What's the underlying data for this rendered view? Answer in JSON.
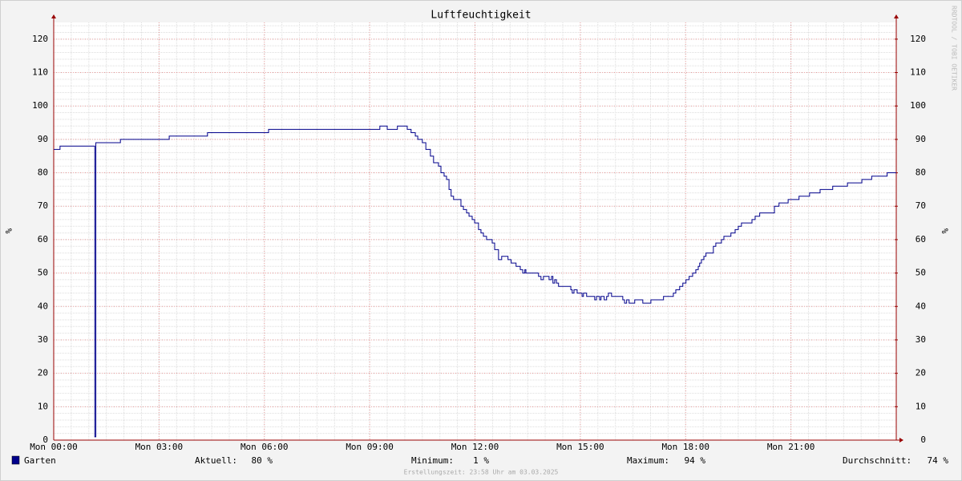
{
  "chart_data": {
    "type": "line",
    "title": "Luftfeuchtigkeit",
    "ylabel": "%",
    "y2label": "%",
    "watermark": "RRDTOOL / TOBI OETIKER",
    "footer": "Erstellungszeit: 23:58 Uhr am 03.03.2025",
    "xlim": [
      0,
      24
    ],
    "xticks": [
      {
        "value": 0,
        "label": "Mon 00:00"
      },
      {
        "value": 3,
        "label": "Mon 03:00"
      },
      {
        "value": 6,
        "label": "Mon 06:00"
      },
      {
        "value": 9,
        "label": "Mon 09:00"
      },
      {
        "value": 12,
        "label": "Mon 12:00"
      },
      {
        "value": 15,
        "label": "Mon 15:00"
      },
      {
        "value": 18,
        "label": "Mon 18:00"
      },
      {
        "value": 21,
        "label": "Mon 21:00"
      }
    ],
    "ylim": [
      0,
      125
    ],
    "yticks": [
      0,
      10,
      20,
      30,
      40,
      50,
      60,
      70,
      80,
      90,
      100,
      110,
      120
    ],
    "y2lim": [
      0,
      125
    ],
    "y2ticks": [
      0,
      10,
      20,
      30,
      40,
      50,
      60,
      70,
      80,
      90,
      100,
      110,
      120
    ],
    "grid": true,
    "step": "post",
    "series": [
      {
        "name": "Garten",
        "color": "#00008b",
        "x": [
          0,
          0.18,
          1.15,
          1.17,
          1.2,
          1.9,
          3.29,
          4.38,
          6.12,
          9.29,
          9.5,
          9.79,
          10.07,
          10.18,
          10.3,
          10.37,
          10.5,
          10.6,
          10.73,
          10.82,
          10.96,
          11.03,
          11.12,
          11.19,
          11.26,
          11.32,
          11.39,
          11.6,
          11.67,
          11.76,
          11.83,
          11.92,
          11.99,
          12.1,
          12.17,
          12.24,
          12.33,
          12.49,
          12.56,
          12.67,
          12.76,
          12.94,
          13.03,
          13.17,
          13.29,
          13.36,
          13.42,
          13.45,
          13.81,
          13.88,
          13.95,
          14.11,
          14.18,
          14.22,
          14.27,
          14.32,
          14.38,
          14.73,
          14.77,
          14.82,
          14.91,
          15.05,
          15.09,
          15.18,
          15.41,
          15.46,
          15.55,
          15.59,
          15.68,
          15.75,
          15.8,
          15.89,
          16.21,
          16.26,
          16.32,
          16.39,
          16.55,
          16.78,
          17.01,
          17.37,
          17.65,
          17.72,
          17.83,
          17.92,
          18.01,
          18.1,
          18.2,
          18.29,
          18.36,
          18.4,
          18.45,
          18.52,
          18.58,
          18.79,
          18.86,
          19.02,
          19.09,
          19.29,
          19.41,
          19.5,
          19.59,
          19.89,
          19.98,
          20.11,
          20.53,
          20.66,
          20.92,
          21.23,
          21.53,
          21.83,
          22.19,
          22.61,
          23.02,
          23.3,
          23.74,
          24
        ],
        "values": [
          87,
          88,
          88,
          1,
          89,
          90,
          91,
          92,
          93,
          94,
          93,
          94,
          93,
          92,
          91,
          90,
          89,
          87,
          85,
          83,
          82,
          80,
          79,
          78,
          75,
          73,
          72,
          70,
          69,
          68,
          67,
          66,
          65,
          63,
          62,
          61,
          60,
          59,
          57,
          54,
          55,
          54,
          53,
          52,
          51,
          50,
          51,
          50,
          49,
          48,
          49,
          48,
          49,
          47,
          48,
          47,
          46,
          45,
          44,
          45,
          44,
          43,
          44,
          43,
          42,
          43,
          42,
          43,
          42,
          43,
          44,
          43,
          42,
          41,
          42,
          41,
          42,
          41,
          42,
          43,
          44,
          45,
          46,
          47,
          48,
          49,
          50,
          51,
          52,
          53,
          54,
          55,
          56,
          58,
          59,
          60,
          61,
          62,
          63,
          64,
          65,
          66,
          67,
          68,
          70,
          71,
          72,
          73,
          74,
          75,
          76,
          77,
          78,
          79,
          80,
          80
        ]
      }
    ],
    "stats": [
      {
        "name": "Aktuell:",
        "value": 80,
        "value_label": "80 %"
      },
      {
        "name": "Minimum:",
        "value": 1,
        "value_label": "1 %"
      },
      {
        "name": "Maximum:",
        "value": 94,
        "value_label": "94 %"
      },
      {
        "name": "Durchschnitt:",
        "value": 74,
        "value_label": "74 %"
      }
    ]
  }
}
